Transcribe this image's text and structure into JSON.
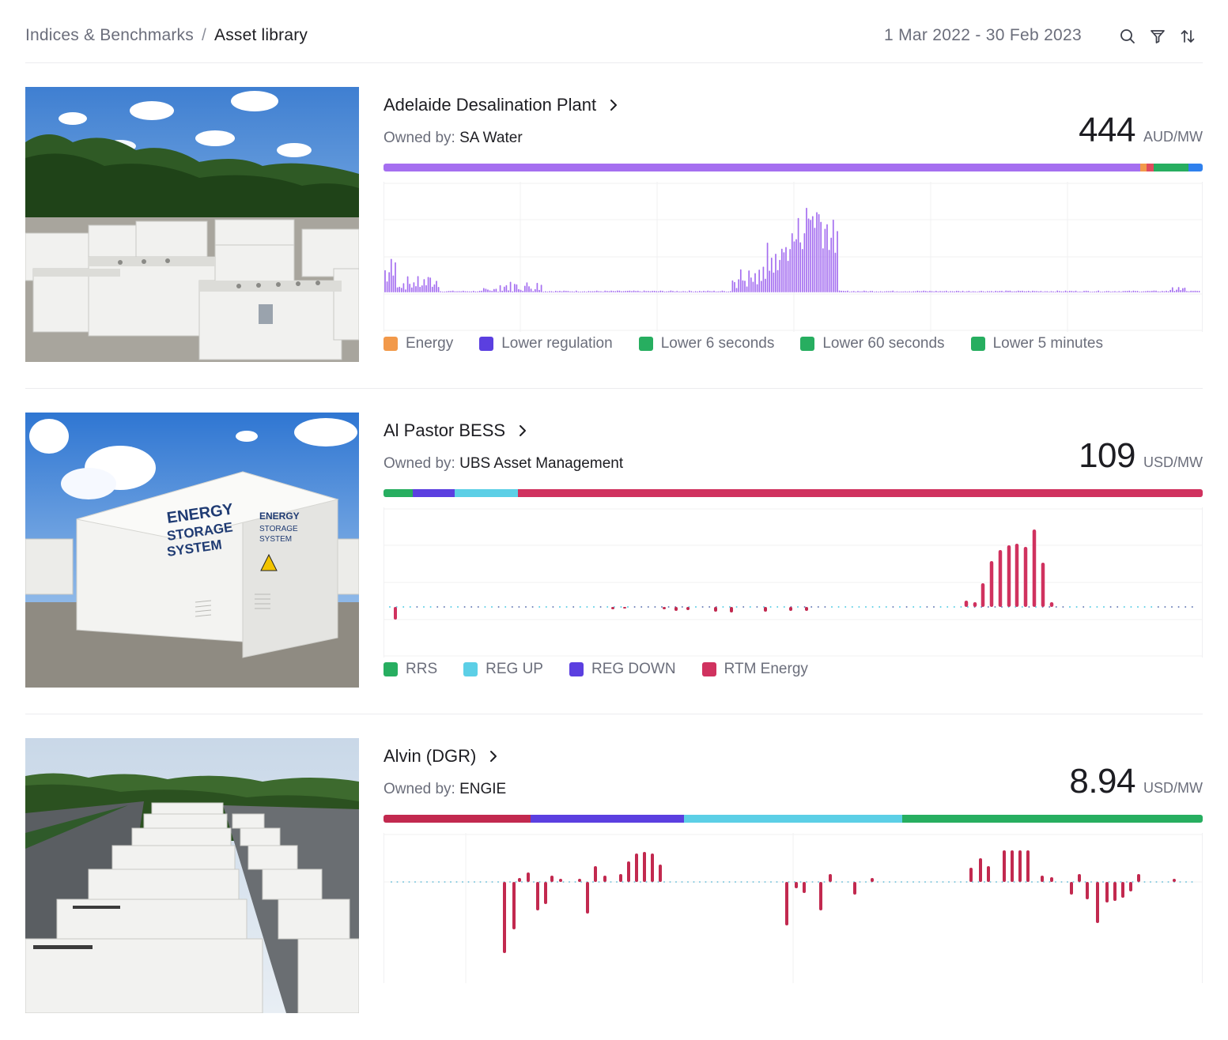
{
  "header": {
    "breadcrumb_parent": "Indices & Benchmarks",
    "breadcrumb_separator": "/",
    "breadcrumb_current": "Asset library",
    "date_range": "1 Mar 2022 - 30 Feb 2023",
    "icons": [
      "search-icon",
      "filter-icon",
      "sort-icon"
    ]
  },
  "assets": [
    {
      "name": "Adelaide Desalination Plant",
      "owner_label": "Owned by:",
      "owner": "SA Water",
      "price": "444",
      "unit": "AUD/MW",
      "revenue_mix": [
        {
          "service": "Lower regulation",
          "share": 0.924,
          "color": "#a56ff0"
        },
        {
          "service": "Energy",
          "share": 0.007,
          "color": "#f2994a"
        },
        {
          "service": "Energy",
          "share": 0.009,
          "color": "#e04b5f"
        },
        {
          "service": "Lower 6 seconds",
          "share": 0.043,
          "color": "#27ae60"
        },
        {
          "service": "Lower 60 seconds",
          "share": 0.017,
          "color": "#2f80ed"
        }
      ],
      "legend": [
        {
          "label": "Energy",
          "color": "#f2994a"
        },
        {
          "label": "Lower regulation",
          "color": "#5b3fe0"
        },
        {
          "label": "Lower 6 seconds",
          "color": "#27ae60"
        },
        {
          "label": "Lower 60 seconds",
          "color": "#27ae60"
        },
        {
          "label": "Lower 5 minutes",
          "color": "#27ae60"
        }
      ]
    },
    {
      "name": "Al Pastor BESS",
      "owner_label": "Owned by:",
      "owner": "UBS Asset Management",
      "price": "109",
      "unit": "USD/MW",
      "revenue_mix": [
        {
          "service": "RRS",
          "share": 0.036,
          "color": "#27ae60"
        },
        {
          "service": "REG DOWN",
          "share": 0.051,
          "color": "#5b3fe0"
        },
        {
          "service": "REG UP",
          "share": 0.077,
          "color": "#5ccfe6"
        },
        {
          "service": "RTM Energy",
          "share": 0.836,
          "color": "#d0325f"
        }
      ],
      "legend": [
        {
          "label": "RRS",
          "color": "#27ae60"
        },
        {
          "label": "REG UP",
          "color": "#5ccfe6"
        },
        {
          "label": "REG DOWN",
          "color": "#5b3fe0"
        },
        {
          "label": "RTM Energy",
          "color": "#d0325f"
        }
      ]
    },
    {
      "name": "Alvin (DGR)",
      "owner_label": "Owned by:",
      "owner": "ENGIE",
      "price": "8.94",
      "unit": "USD/MW",
      "revenue_mix": [
        {
          "service": "RTM Energy",
          "share": 0.18,
          "color": "#c2294f"
        },
        {
          "service": "REG DOWN",
          "share": 0.187,
          "color": "#5b3fe0"
        },
        {
          "service": "REG UP",
          "share": 0.266,
          "color": "#5ccfe6"
        },
        {
          "service": "RRS",
          "share": 0.367,
          "color": "#27ae60"
        }
      ],
      "legend": []
    }
  ]
}
